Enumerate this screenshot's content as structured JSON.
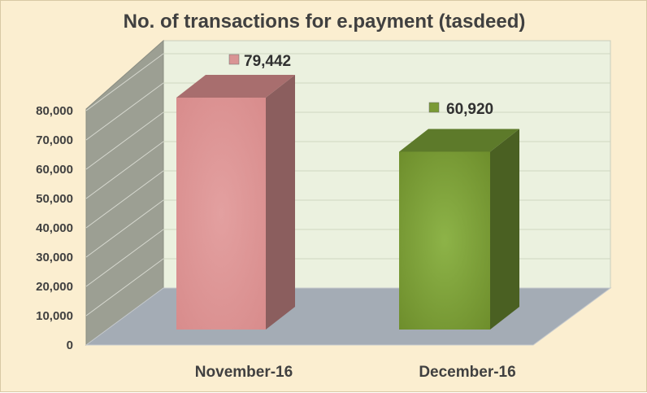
{
  "chart_data": {
    "type": "bar",
    "title": "No. of transactions for e.payment (tasdeed)",
    "categories": [
      "November-16",
      "December-16"
    ],
    "series": [
      {
        "values": [
          79442,
          60920
        ]
      }
    ],
    "data_labels": [
      "79,442",
      "60,920"
    ],
    "ylim": [
      0,
      80000
    ],
    "yticks": [
      0,
      10000,
      20000,
      30000,
      40000,
      50000,
      60000,
      70000,
      80000
    ],
    "ytick_labels": [
      "0",
      "10,000",
      "20,000",
      "30,000",
      "40,000",
      "50,000",
      "60,000",
      "70,000",
      "80,000"
    ],
    "xlabel": "",
    "ylabel": "",
    "grid": true,
    "three_d": true,
    "bar_colors": [
      "#d99494",
      "#7a9a35"
    ],
    "bar_side_colors": [
      "#8b5e5e",
      "#4a6022"
    ],
    "bar_top_colors": [
      "#a86e6e",
      "#5d7a2a"
    ]
  }
}
